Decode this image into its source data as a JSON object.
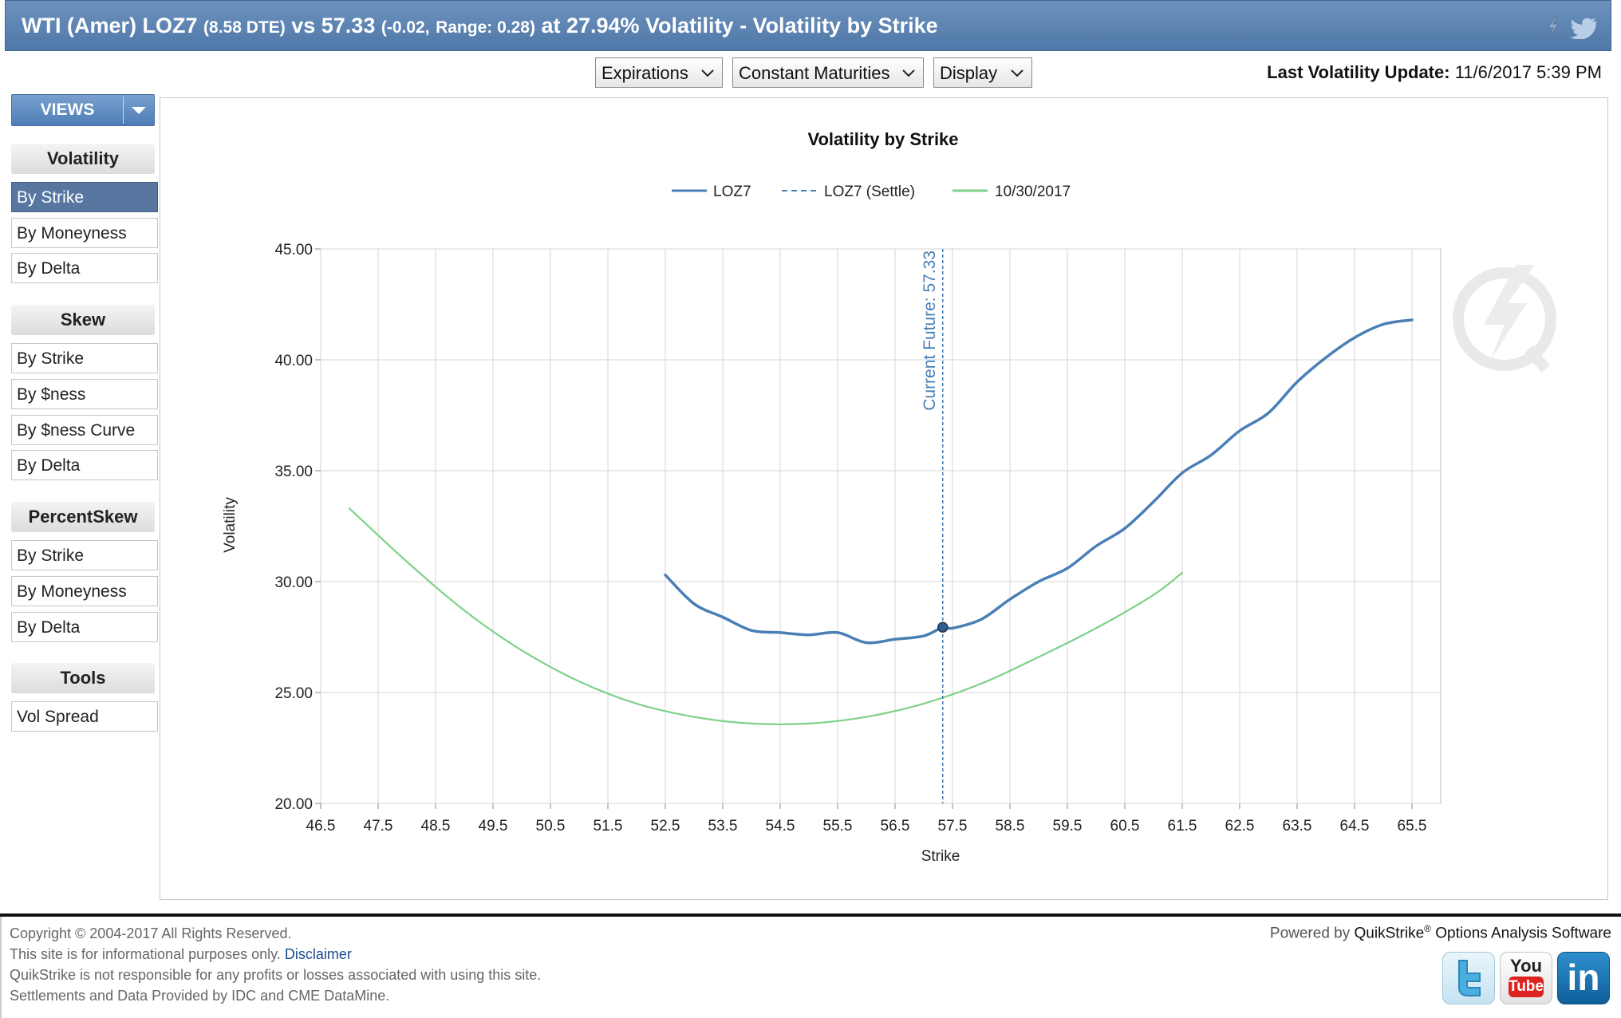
{
  "title": {
    "lead": "WTI (Amer) LOZ7",
    "dte": "(8.58 DTE)",
    "vs": "vs 57.33",
    "change": "(-0.02,",
    "range": "Range: 0.28)",
    "tail": "at 27.94% Volatility - Volatility by Strike"
  },
  "title_icons": [
    "lightning-icon",
    "twitter-bird-icon"
  ],
  "toolbar": {
    "expirations": "Expirations",
    "constant_maturities": "Constant Maturities",
    "display": "Display",
    "last_update_label": "Last Volatility Update:",
    "last_update_value": "11/6/2017 5:39 PM"
  },
  "sidebar": {
    "views_label": "VIEWS",
    "sections": [
      {
        "title": "Volatility",
        "items": [
          "By Strike",
          "By Moneyness",
          "By Delta"
        ]
      },
      {
        "title": "Skew",
        "items": [
          "By Strike",
          "By $ness",
          "By $ness Curve",
          "By Delta"
        ]
      },
      {
        "title": "PercentSkew",
        "items": [
          "By Strike",
          "By Moneyness",
          "By Delta"
        ]
      },
      {
        "title": "Tools",
        "items": [
          "Vol Spread"
        ]
      }
    ],
    "active": "Volatility / By Strike"
  },
  "chart_data": {
    "type": "line",
    "title": "Volatility by Strike",
    "xlabel": "Strike",
    "ylabel": "Volatility",
    "xlim": [
      46.5,
      66.0
    ],
    "ylim": [
      20.0,
      45.0
    ],
    "x_ticks": [
      46.5,
      47.5,
      48.5,
      49.5,
      50.5,
      51.5,
      52.5,
      53.5,
      54.5,
      55.5,
      56.5,
      57.5,
      58.5,
      59.5,
      60.5,
      61.5,
      62.5,
      63.5,
      64.5,
      65.5
    ],
    "y_ticks": [
      "20.00",
      "25.00",
      "30.00",
      "35.00",
      "40.00",
      "45.00"
    ],
    "grid": true,
    "legend_position": "top-center",
    "series": [
      {
        "name": "LOZ7",
        "color": "#4a7fb5",
        "points": [
          [
            52.5,
            30.3
          ],
          [
            53.0,
            29.0
          ],
          [
            53.5,
            28.4
          ],
          [
            54.0,
            27.8
          ],
          [
            54.5,
            27.7
          ],
          [
            55.0,
            27.6
          ],
          [
            55.5,
            27.7
          ],
          [
            56.0,
            27.25
          ],
          [
            56.5,
            27.4
          ],
          [
            57.0,
            27.55
          ],
          [
            57.33,
            27.94
          ],
          [
            57.5,
            27.9
          ],
          [
            58.0,
            28.3
          ],
          [
            58.5,
            29.2
          ],
          [
            59.0,
            30.0
          ],
          [
            59.5,
            30.6
          ],
          [
            60.0,
            31.6
          ],
          [
            60.5,
            32.4
          ],
          [
            61.0,
            33.6
          ],
          [
            61.5,
            34.9
          ],
          [
            62.0,
            35.7
          ],
          [
            62.5,
            36.8
          ],
          [
            63.0,
            37.6
          ],
          [
            63.5,
            39.0
          ],
          [
            64.0,
            40.1
          ],
          [
            64.5,
            41.0
          ],
          [
            65.0,
            41.6
          ],
          [
            65.5,
            41.8
          ]
        ]
      },
      {
        "name": "LOZ7 (Settle)",
        "color": "#4a7fb5",
        "dashed": true,
        "points": []
      },
      {
        "name": "10/30/2017",
        "color": "#7fd18a",
        "points": [
          [
            47.0,
            33.3
          ],
          [
            48.0,
            30.9
          ],
          [
            49.0,
            28.7
          ],
          [
            50.0,
            26.9
          ],
          [
            51.0,
            25.5
          ],
          [
            52.0,
            24.5
          ],
          [
            53.0,
            23.9
          ],
          [
            54.0,
            23.6
          ],
          [
            55.0,
            23.6
          ],
          [
            56.0,
            23.9
          ],
          [
            57.0,
            24.5
          ],
          [
            58.0,
            25.4
          ],
          [
            59.0,
            26.6
          ],
          [
            60.0,
            27.9
          ],
          [
            61.0,
            29.4
          ],
          [
            61.5,
            30.4
          ]
        ]
      }
    ],
    "marker": {
      "x": 57.33,
      "y": 27.94
    },
    "vline": {
      "x": 57.33,
      "label": "Current Future: 57.33",
      "color": "#4a7fb5"
    }
  },
  "footer": {
    "lines": [
      "Copyright © 2004-2017 All Rights Reserved.",
      "This site is for informational purposes only.",
      "QuikStrike is not responsible for any profits or losses associated with using this site.",
      "Settlements and Data Provided by IDC and CME DataMine."
    ],
    "disclaimer": "Disclaimer",
    "powered_prefix": "Powered by",
    "powered_brand": "QuikStrike",
    "powered_reg": "®",
    "powered_suffix": "Options Analysis Software",
    "social_icons": [
      "twitter-icon",
      "youtube-icon",
      "linkedin-icon"
    ],
    "youtube_text_1": "You",
    "youtube_text_2": "Tube",
    "linkedin_text": "in"
  }
}
